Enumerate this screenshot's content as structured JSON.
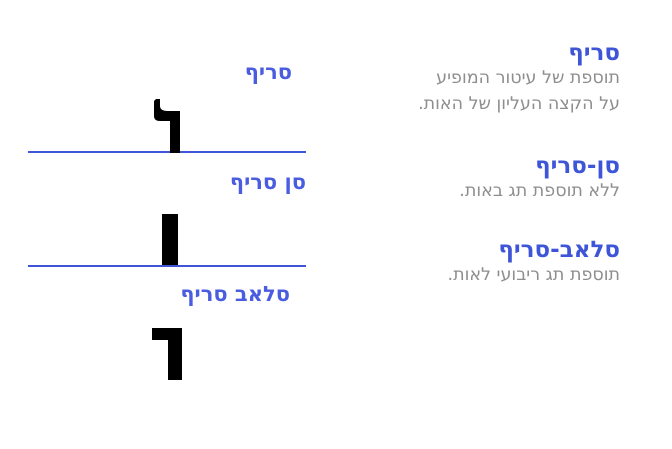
{
  "diagram": {
    "labels": {
      "serif": "סריף",
      "sans_serif": "סן סריף",
      "slab_serif": "סלאב סריף"
    },
    "glyphs": {
      "serif": "serif-letter-icon",
      "sans_serif": "sans-serif-letter-icon",
      "slab_serif": "slab-serif-letter-icon"
    }
  },
  "legend": {
    "items": [
      {
        "term": "סריף",
        "desc_line1": "תוספת של עיטור המופיע",
        "desc_line2": "על הקצה העליון של האות."
      },
      {
        "term": "סן-סריף",
        "desc_line1": "ללא תוספת תג באות."
      },
      {
        "term": "סלאב-סריף",
        "desc_line1": "תוספת תג ריבועי לאות."
      }
    ]
  },
  "colors": {
    "label_blue": "#4a5de0",
    "rule_blue": "#3e55d8",
    "desc_gray": "#8e8e8e",
    "glyph_black": "#000000"
  }
}
